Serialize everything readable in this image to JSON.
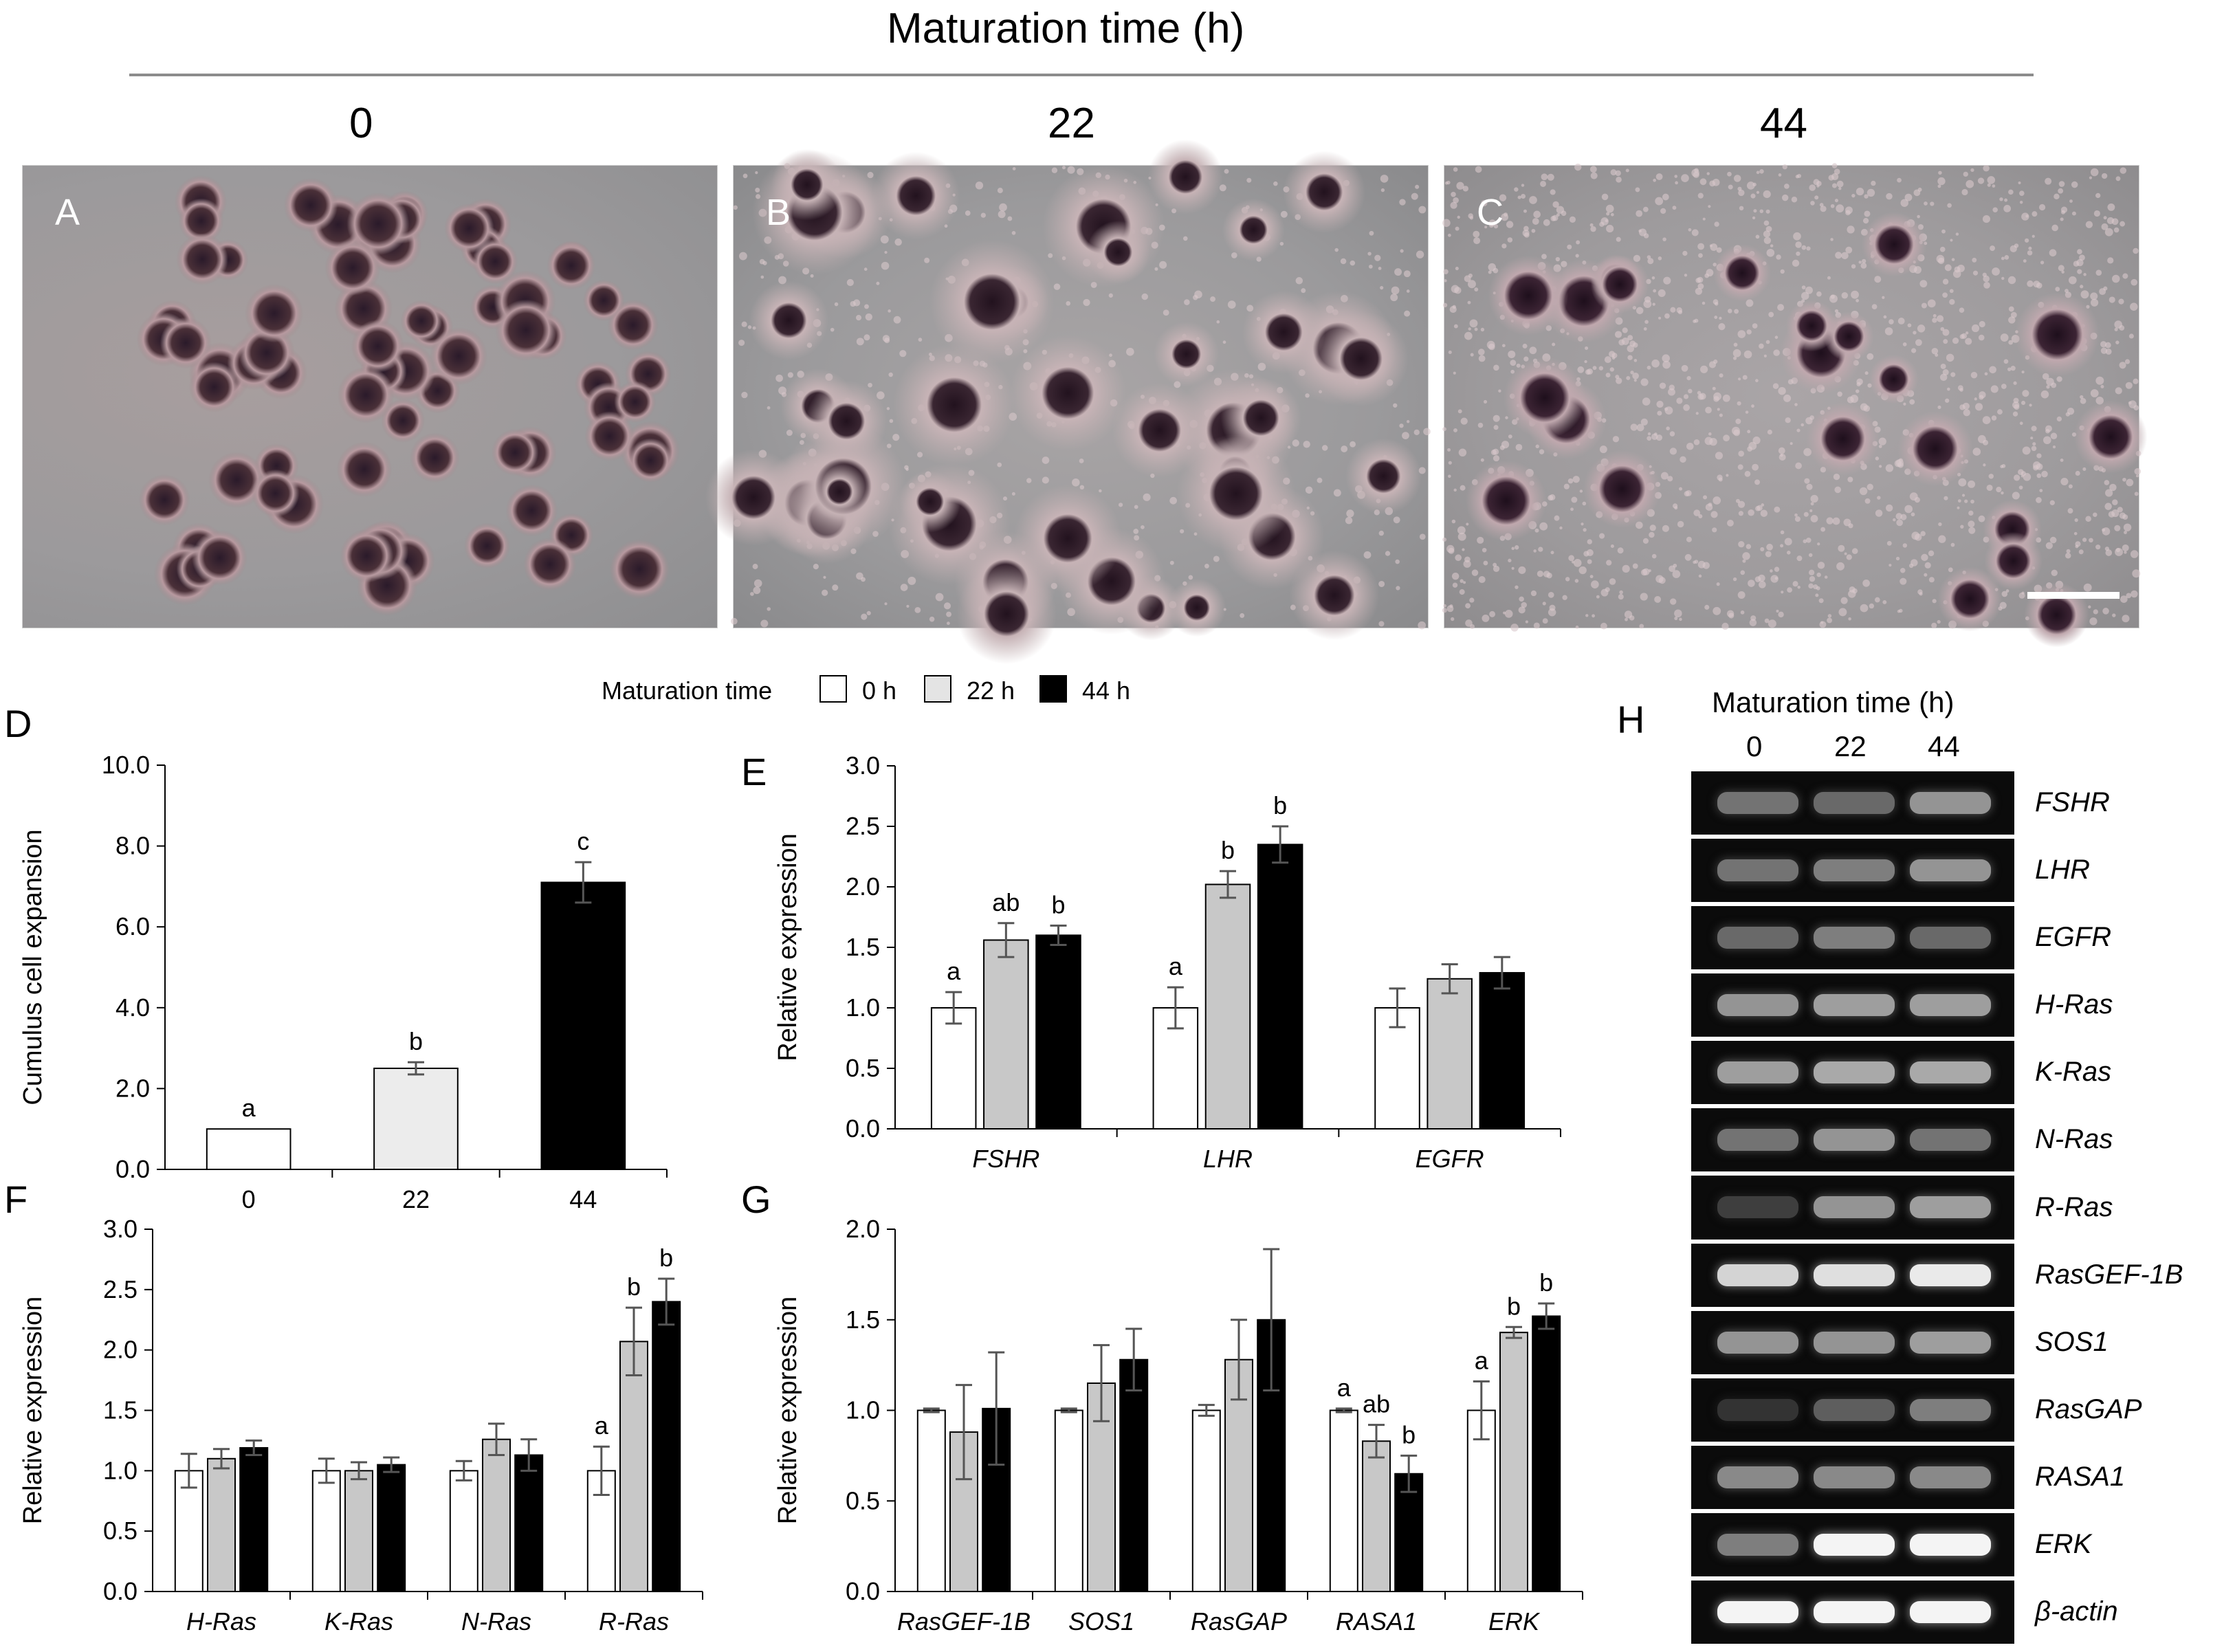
{
  "figure": {
    "top_title": "Maturation time (h)",
    "col_labels": [
      "0",
      "22",
      "44"
    ],
    "panel_letters": {
      "A": "A",
      "B": "B",
      "C": "C",
      "D": "D",
      "E": "E",
      "F": "F",
      "G": "G",
      "H": "H"
    },
    "legend": {
      "title": "Maturation time",
      "items": [
        "0 h",
        "22 h",
        "44 h"
      ]
    },
    "colors": {
      "0 h": "#ffffff",
      "22 h_D": "#ececec",
      "22 h": "#c8c8c8",
      "44 h": "#000000",
      "error": "#555555",
      "axis": "#000000"
    },
    "gel": {
      "title": "Maturation time (h)",
      "lanes": [
        "0",
        "22",
        "44"
      ],
      "genes": [
        "FSHR",
        "LHR",
        "EGFR",
        "H-Ras",
        "K-Ras",
        "N-Ras",
        "R-Ras",
        "RasGEF-1B",
        "SOS1",
        "RasGAP",
        "RASA1",
        "ERK",
        "β-actin"
      ],
      "band_intensity": [
        [
          0.35,
          0.3,
          0.5
        ],
        [
          0.35,
          0.4,
          0.5
        ],
        [
          0.3,
          0.4,
          0.3
        ],
        [
          0.5,
          0.55,
          0.55
        ],
        [
          0.55,
          0.6,
          0.6
        ],
        [
          0.35,
          0.5,
          0.35
        ],
        [
          0.1,
          0.5,
          0.55
        ],
        [
          0.8,
          0.85,
          0.9
        ],
        [
          0.5,
          0.5,
          0.55
        ],
        [
          0.05,
          0.25,
          0.4
        ],
        [
          0.45,
          0.45,
          0.45
        ],
        [
          0.4,
          0.95,
          0.95
        ],
        [
          0.95,
          0.95,
          0.95
        ]
      ]
    }
  },
  "chart_data": [
    {
      "id": "D",
      "type": "bar",
      "categories": [
        "0",
        "22",
        "44"
      ],
      "values": [
        1.0,
        2.5,
        7.1
      ],
      "errors": [
        0.0,
        0.15,
        0.5
      ],
      "letters": [
        "a",
        "b",
        "c"
      ],
      "ylabel": "Cumulus cell expansion",
      "ylim": [
        0,
        10
      ],
      "yticks": [
        "0.0",
        "2.0",
        "4.0",
        "6.0",
        "8.0",
        "10.0"
      ]
    },
    {
      "id": "E",
      "type": "bar",
      "categories": [
        "FSHR",
        "LHR",
        "EGFR"
      ],
      "ylabel": "Relative expression",
      "ylim": [
        0,
        3
      ],
      "yticks": [
        "0.0",
        "0.5",
        "1.0",
        "1.5",
        "2.0",
        "2.5",
        "3.0"
      ],
      "series": [
        {
          "name": "0 h",
          "values": [
            1.0,
            1.0,
            1.0
          ],
          "errors": [
            0.13,
            0.17,
            0.16
          ],
          "letters": [
            "a",
            "a",
            ""
          ]
        },
        {
          "name": "22 h",
          "values": [
            1.56,
            2.02,
            1.24
          ],
          "errors": [
            0.14,
            0.11,
            0.12
          ],
          "letters": [
            "ab",
            "b",
            ""
          ]
        },
        {
          "name": "44 h",
          "values": [
            1.6,
            2.35,
            1.29
          ],
          "errors": [
            0.08,
            0.15,
            0.13
          ],
          "letters": [
            "b",
            "b",
            ""
          ]
        }
      ]
    },
    {
      "id": "F",
      "type": "bar",
      "categories": [
        "H-Ras",
        "K-Ras",
        "N-Ras",
        "R-Ras"
      ],
      "ylabel": "Relative expression",
      "ylim": [
        0,
        3
      ],
      "yticks": [
        "0.0",
        "0.5",
        "1.0",
        "1.5",
        "2.0",
        "2.5",
        "3.0"
      ],
      "series": [
        {
          "name": "0 h",
          "values": [
            1.0,
            1.0,
            1.0,
            1.0
          ],
          "errors": [
            0.14,
            0.1,
            0.08,
            0.2
          ],
          "letters": [
            "",
            "",
            "",
            "a"
          ]
        },
        {
          "name": "22 h",
          "values": [
            1.1,
            1.0,
            1.26,
            2.07
          ],
          "errors": [
            0.08,
            0.07,
            0.13,
            0.28
          ],
          "letters": [
            "",
            "",
            "",
            "b"
          ]
        },
        {
          "name": "44 h",
          "values": [
            1.19,
            1.05,
            1.13,
            2.4
          ],
          "errors": [
            0.06,
            0.06,
            0.13,
            0.19
          ],
          "letters": [
            "",
            "",
            "",
            "b"
          ]
        }
      ]
    },
    {
      "id": "G",
      "type": "bar",
      "categories": [
        "RasGEF-1B",
        "SOS1",
        "RasGAP",
        "RASA1",
        "ERK"
      ],
      "ylabel": "Relative expression",
      "ylim": [
        0,
        2
      ],
      "yticks": [
        "0.0",
        "0.5",
        "1.0",
        "1.5",
        "2.0"
      ],
      "series": [
        {
          "name": "0 h",
          "values": [
            1.0,
            1.0,
            1.0,
            1.0,
            1.0
          ],
          "errors": [
            0.01,
            0.01,
            0.03,
            0.01,
            0.16
          ],
          "letters": [
            "",
            "",
            "",
            "a",
            "a"
          ]
        },
        {
          "name": "22 h",
          "values": [
            0.88,
            1.15,
            1.28,
            0.83,
            1.43
          ],
          "errors": [
            0.26,
            0.21,
            0.22,
            0.09,
            0.03
          ],
          "letters": [
            "",
            "",
            "",
            "ab",
            "b"
          ]
        },
        {
          "name": "44 h",
          "values": [
            1.01,
            1.28,
            1.5,
            0.65,
            1.52
          ],
          "errors": [
            0.31,
            0.17,
            0.39,
            0.1,
            0.07
          ],
          "letters": [
            "",
            "",
            "",
            "b",
            "b"
          ]
        }
      ]
    }
  ]
}
